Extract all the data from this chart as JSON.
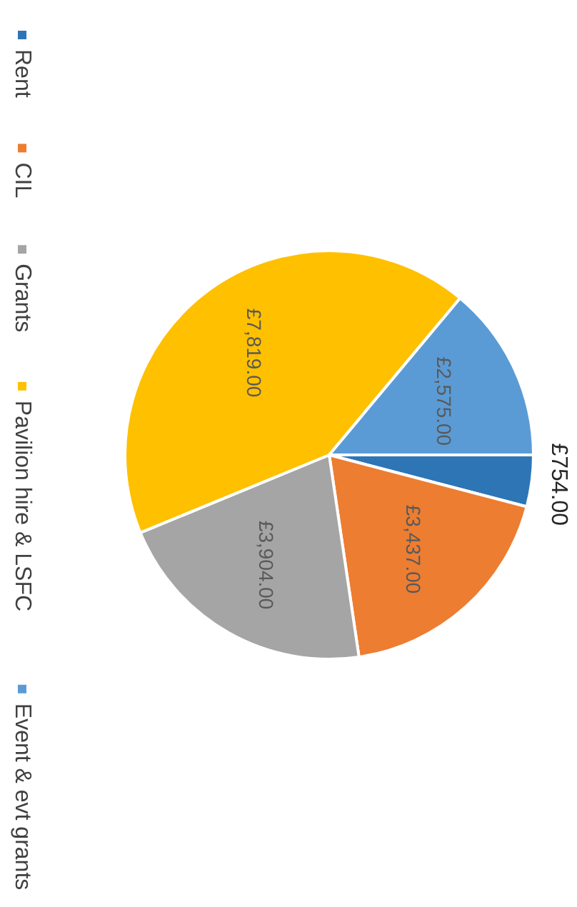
{
  "chart_data": {
    "type": "pie",
    "categories": [
      "Rent",
      "CIL",
      "Grants",
      "Pavilion hire & LSFC",
      "Event & evt grants"
    ],
    "values": [
      754,
      3437,
      3904,
      7819,
      2575
    ],
    "colors": [
      "#2e75b6",
      "#ed7d31",
      "#a5a5a5",
      "#ffc000",
      "#5b9bd5"
    ],
    "value_labels": [
      "£754.00",
      "£3,437.00",
      "£3,904.00",
      "£7,819.00",
      "£2,575.00"
    ],
    "legend": "left"
  }
}
